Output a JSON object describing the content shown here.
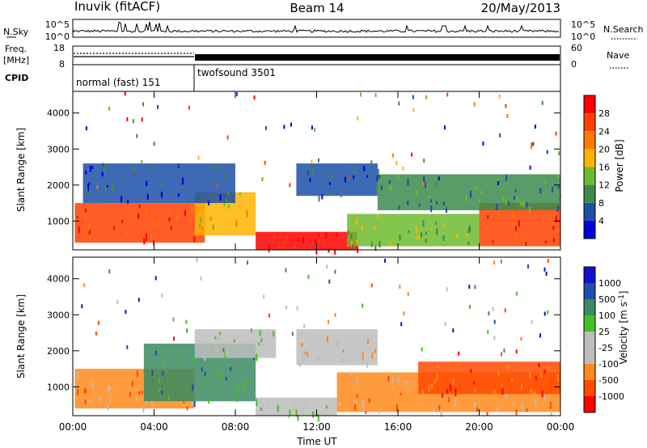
{
  "header": {
    "station": "Inuvik (fitACF)",
    "beam": "Beam 14",
    "date": "20/May/2013"
  },
  "noise_panel": {
    "left_label": "N.Sky",
    "right_label": "N.Search",
    "left_ticks": [
      "10^5",
      "10^0"
    ],
    "right_ticks": [
      "10^5",
      "10^0"
    ]
  },
  "freq_panel": {
    "left_label": "Freq.",
    "left_unit": "[MHz]",
    "right_label": "Nave",
    "left_ticks": [
      "18",
      "8"
    ],
    "right_ticks": [
      "60",
      "0"
    ]
  },
  "cpid_panel": {
    "label": "CPID",
    "programs": [
      {
        "name": "normal (fast) 151",
        "start_hour": 0,
        "end_hour": 6
      },
      {
        "name": "twofsound 3501",
        "start_hour": 6,
        "end_hour": 24
      }
    ]
  },
  "x_axis": {
    "label": "Time UT",
    "ticks": [
      "00:00",
      "04:00",
      "08:00",
      "12:00",
      "16:00",
      "20:00",
      "00:00"
    ]
  },
  "colors": {
    "power": [
      "#0000dd",
      "#1c4fa8",
      "#3d8a4c",
      "#6dbb2e",
      "#ffb400",
      "#ff7a00",
      "#ff4000",
      "#ff0000"
    ],
    "velocity": [
      "#ff0000",
      "#ff4a00",
      "#ff8a1a",
      "#bdbdbd",
      "#bdbdbd",
      "#45c024",
      "#3a8a62",
      "#1f4fa8",
      "#1010d0"
    ]
  },
  "chart_data": [
    {
      "type": "heatmap",
      "name": "power",
      "xlabel": "Time UT",
      "ylabel": "Slant Range [km]",
      "xlim": [
        0,
        24
      ],
      "ylim": [
        200,
        4600
      ],
      "y_ticks": [
        1000,
        2000,
        3000,
        4000
      ],
      "colorbar": {
        "label": "Power [dB]",
        "tick_values": [
          4,
          8,
          12,
          16,
          20,
          24,
          28
        ],
        "range": [
          0,
          32
        ]
      },
      "regions": [
        {
          "t0": 0.1,
          "t1": 6.5,
          "r0": 400,
          "r1": 1500,
          "level": 6
        },
        {
          "t0": 6.0,
          "t1": 9.0,
          "r0": 600,
          "r1": 1800,
          "level": 4
        },
        {
          "t0": 9.0,
          "t1": 14.0,
          "r0": 200,
          "r1": 700,
          "level": 7
        },
        {
          "t0": 13.5,
          "t1": 20.0,
          "r0": 300,
          "r1": 1200,
          "level": 3
        },
        {
          "t0": 20.0,
          "t1": 24.0,
          "r0": 300,
          "r1": 1500,
          "level": 6
        },
        {
          "t0": 0.5,
          "t1": 8.0,
          "r0": 1500,
          "r1": 2600,
          "level": 1
        },
        {
          "t0": 11.0,
          "t1": 15.0,
          "r0": 1700,
          "r1": 2600,
          "level": 1
        },
        {
          "t0": 15.0,
          "t1": 24.0,
          "r0": 1300,
          "r1": 2300,
          "level": 2
        }
      ]
    },
    {
      "type": "heatmap",
      "name": "velocity",
      "xlabel": "Time UT",
      "ylabel": "Slant Range [km]",
      "xlim": [
        0,
        24
      ],
      "ylim": [
        200,
        4600
      ],
      "y_ticks": [
        1000,
        2000,
        3000,
        4000
      ],
      "colorbar": {
        "label": "Velocity [m s-1]",
        "tick_labels": [
          "1000",
          "500",
          "100",
          "25",
          "-25",
          "-100",
          "-500",
          "-1000"
        ]
      },
      "regions": [
        {
          "t0": 0.1,
          "t1": 6.0,
          "r0": 400,
          "r1": 1500,
          "level": 2
        },
        {
          "t0": 3.5,
          "t1": 9.0,
          "r0": 600,
          "r1": 2200,
          "level": 6
        },
        {
          "t0": 6.0,
          "t1": 10.0,
          "r0": 1800,
          "r1": 2600,
          "level": 4
        },
        {
          "t0": 9.0,
          "t1": 13.0,
          "r0": 200,
          "r1": 700,
          "level": 4
        },
        {
          "t0": 13.0,
          "t1": 24.0,
          "r0": 300,
          "r1": 1400,
          "level": 2
        },
        {
          "t0": 17.0,
          "t1": 24.0,
          "r0": 800,
          "r1": 1700,
          "level": 1
        },
        {
          "t0": 11.0,
          "t1": 15.0,
          "r0": 1600,
          "r1": 2600,
          "level": 3
        }
      ]
    }
  ]
}
